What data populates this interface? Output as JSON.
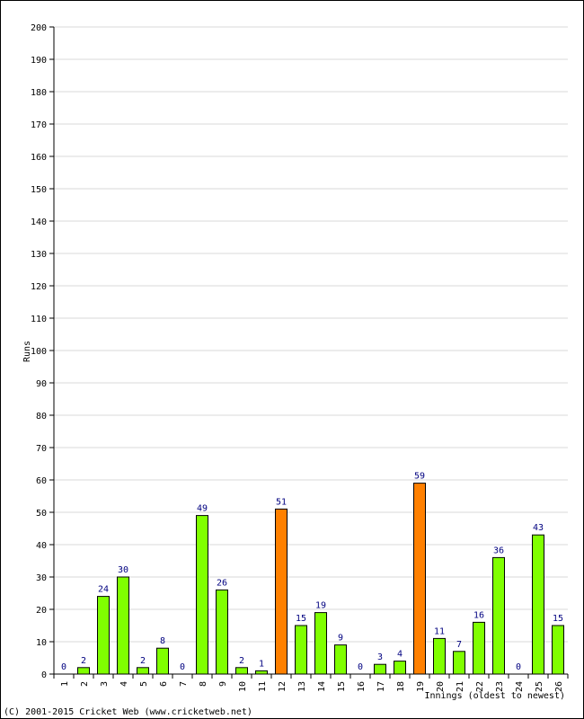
{
  "chart_data": {
    "type": "bar",
    "ylabel": "Runs",
    "xlabel": "Innings (oldest to newest)",
    "ylim": [
      0,
      200
    ],
    "yticks": [
      0,
      10,
      20,
      30,
      40,
      50,
      60,
      70,
      80,
      90,
      100,
      110,
      120,
      130,
      140,
      150,
      160,
      170,
      180,
      190,
      200
    ],
    "grid": true,
    "categories": [
      "1",
      "2",
      "3",
      "4",
      "5",
      "6",
      "7",
      "8",
      "9",
      "10",
      "11",
      "12",
      "13",
      "14",
      "15",
      "16",
      "17",
      "18",
      "19",
      "20",
      "21",
      "22",
      "23",
      "24",
      "25",
      "26"
    ],
    "values": [
      0,
      2,
      24,
      30,
      2,
      8,
      0,
      49,
      26,
      2,
      1,
      51,
      15,
      19,
      9,
      0,
      3,
      4,
      59,
      11,
      7,
      16,
      36,
      0,
      43,
      15
    ],
    "highlighted": [
      false,
      false,
      false,
      false,
      false,
      false,
      false,
      false,
      false,
      false,
      false,
      true,
      false,
      false,
      false,
      false,
      false,
      false,
      true,
      false,
      false,
      false,
      false,
      false,
      false,
      false
    ],
    "colors": {
      "bar": "#80ff00",
      "highlight": "#ff8000",
      "outline": "#000000",
      "value_label": "#000080",
      "grid": "#d8d8d8"
    }
  },
  "footer": {
    "copyright": "(C) 2001-2015 Cricket Web (www.cricketweb.net)"
  }
}
